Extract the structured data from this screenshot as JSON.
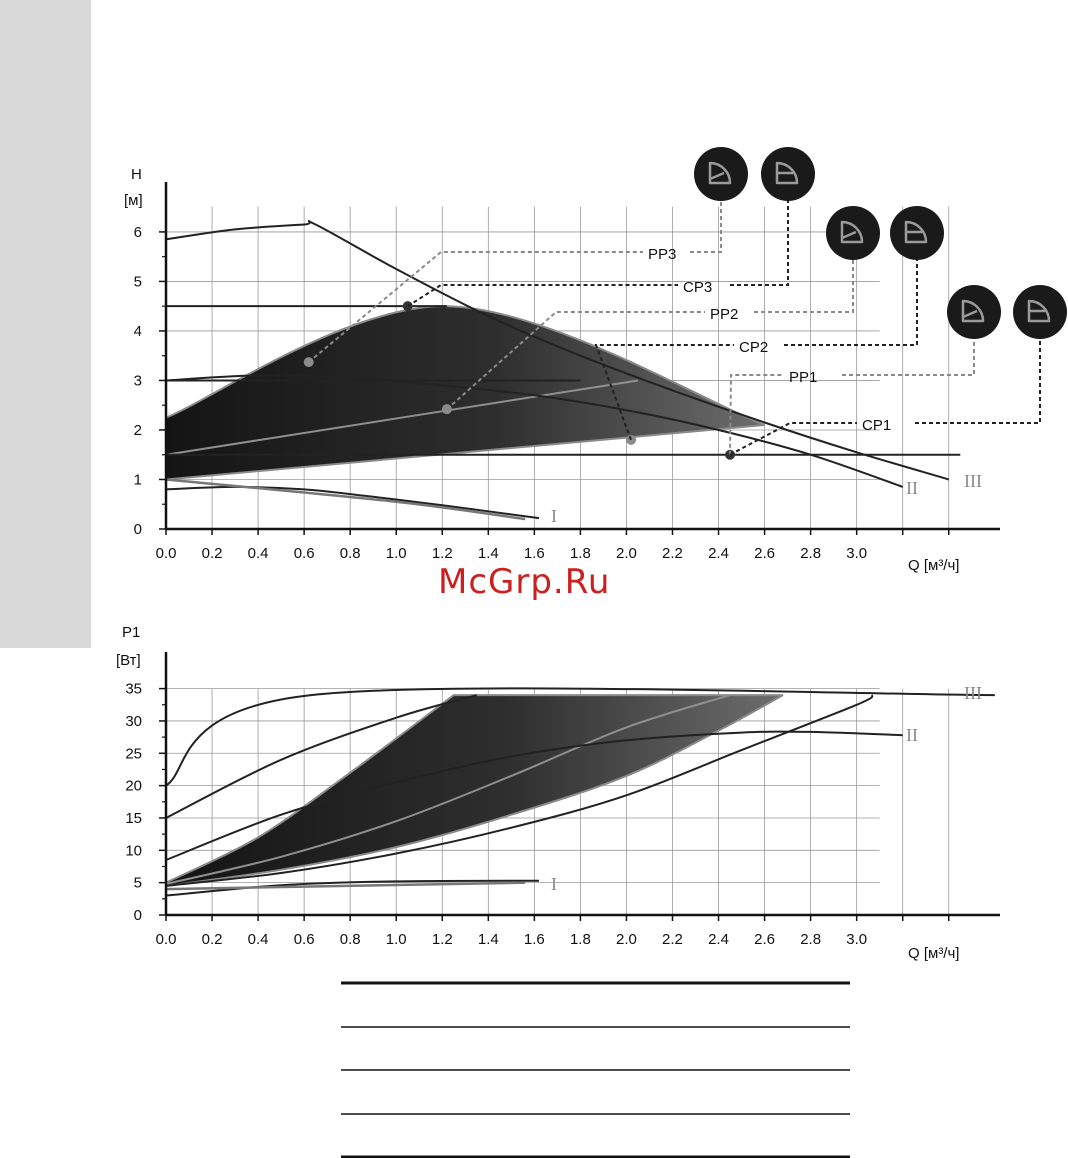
{
  "watermark": "McGrp.Ru",
  "chart_data": [
    {
      "type": "line",
      "ylabel": "H",
      "yunit": "[м]",
      "xlabel": "Q [м³/ч]",
      "xticks": [
        "0.0",
        "0.2",
        "0.4",
        "0.6",
        "0.8",
        "1.0",
        "1.2",
        "1.4",
        "1.6",
        "1.8",
        "2.0",
        "2.2",
        "2.4",
        "2.6",
        "2.8",
        "3.0"
      ],
      "yticks": [
        "0",
        "1",
        "2",
        "3",
        "4",
        "5",
        "6"
      ],
      "xlim": [
        0,
        3.6
      ],
      "ylim": [
        0,
        7
      ],
      "grid": true,
      "series": [
        {
          "name": "III",
          "color": "#222222",
          "x": [
            0,
            0.3,
            0.6,
            0.65,
            1.0,
            1.4,
            1.8,
            2.2,
            2.6,
            3.0,
            3.4
          ],
          "y": [
            5.85,
            6.05,
            6.15,
            6.15,
            5.25,
            4.3,
            3.5,
            2.8,
            2.15,
            1.55,
            1.0
          ]
        },
        {
          "name": "II",
          "color": "#222222",
          "x": [
            0,
            0.4,
            0.8,
            1.2,
            1.6,
            2.0,
            2.4,
            2.8,
            3.2
          ],
          "y": [
            3.0,
            3.1,
            3.05,
            2.9,
            2.7,
            2.4,
            2.0,
            1.5,
            0.85
          ]
        },
        {
          "name": "I",
          "color": "#222222",
          "x": [
            0,
            0.3,
            0.6,
            0.9,
            1.2,
            1.62
          ],
          "y": [
            0.8,
            0.85,
            0.8,
            0.65,
            0.48,
            0.22
          ]
        },
        {
          "name": "",
          "color": "#777777",
          "x": [
            0,
            1.0,
            1.56
          ],
          "y": [
            1.0,
            0.55,
            0.2
          ]
        },
        {
          "name": "",
          "color": "#222222",
          "x": [
            0,
            3.45
          ],
          "y": [
            1.5,
            1.5
          ]
        },
        {
          "name": "",
          "color": "#222222",
          "x": [
            0,
            1.22
          ],
          "y": [
            4.5,
            4.5
          ]
        },
        {
          "name": "",
          "color": "#222222",
          "x": [
            0,
            1.8
          ],
          "y": [
            3.0,
            3.0
          ]
        }
      ],
      "band": {
        "upper": {
          "x": [
            0,
            1.22,
            2.6
          ],
          "y": [
            2.25,
            4.5,
            2.1
          ]
        },
        "lower": {
          "x": [
            0,
            2.6
          ],
          "y": [
            1.0,
            2.1
          ]
        }
      },
      "mid_line": {
        "x": [
          0,
          2.05
        ],
        "y": [
          1.5,
          3.0
        ]
      },
      "points": [
        {
          "x": 0.62,
          "y": 3.37,
          "color": "#8a8a8a"
        },
        {
          "x": 1.05,
          "y": 4.5,
          "color": "#333333"
        },
        {
          "x": 1.22,
          "y": 2.42,
          "color": "#8a8a8a"
        },
        {
          "x": 2.02,
          "y": 1.8,
          "color": "#8a8a8a"
        },
        {
          "x": 2.45,
          "y": 1.5,
          "color": "#333333"
        }
      ],
      "curve_labels": [
        "III",
        "II",
        "I"
      ],
      "modes": [
        {
          "label": "PP3",
          "style": "dashed-gray"
        },
        {
          "label": "CP3",
          "style": "dashed-black"
        },
        {
          "label": "PP2",
          "style": "dashed-gray"
        },
        {
          "label": "CP2",
          "style": "dashed-black"
        },
        {
          "label": "PP1",
          "style": "dashed-gray"
        },
        {
          "label": "CP1",
          "style": "dashed-black"
        }
      ],
      "mode_icons": [
        "proportional-pressure-icon",
        "constant-pressure-icon",
        "proportional-pressure-icon",
        "constant-pressure-icon",
        "proportional-pressure-icon",
        "constant-pressure-icon"
      ]
    },
    {
      "type": "line",
      "ylabel": "P1",
      "yunit": "[Вт]",
      "xlabel": "Q [м³/ч]",
      "xticks": [
        "0.0",
        "0.2",
        "0.4",
        "0.6",
        "0.8",
        "1.0",
        "1.2",
        "1.4",
        "1.6",
        "1.8",
        "2.0",
        "2.2",
        "2.4",
        "2.6",
        "2.8",
        "3.0"
      ],
      "yticks": [
        "0",
        "5",
        "10",
        "15",
        "20",
        "25",
        "30",
        "35"
      ],
      "xlim": [
        0,
        3.6
      ],
      "ylim": [
        0,
        35
      ],
      "grid": true,
      "series": [
        {
          "name": "III",
          "color": "#222222",
          "x": [
            0,
            0.63,
            3.6
          ],
          "y": [
            20,
            34,
            34
          ]
        },
        {
          "name": "II",
          "color": "#222222",
          "x": [
            0,
            0.5,
            1.0,
            1.5,
            2.0,
            2.5,
            2.8,
            3.2
          ],
          "y": [
            8.5,
            15.5,
            20.5,
            24.5,
            27,
            28.2,
            28.3,
            27.8
          ]
        },
        {
          "name": "I",
          "color": "#222222",
          "x": [
            0,
            0.5,
            1.0,
            1.62
          ],
          "y": [
            3.0,
            4.6,
            5.2,
            5.3
          ]
        },
        {
          "name": "",
          "color": "#777777",
          "x": [
            0,
            1.56
          ],
          "y": [
            4.0,
            5.0
          ]
        },
        {
          "name": "",
          "color": "#222222",
          "x": [
            0,
            0.5,
            1.0,
            1.35
          ],
          "y": [
            15,
            24,
            30.5,
            34
          ]
        },
        {
          "name": "",
          "color": "#222222",
          "x": [
            0,
            0.5,
            1.0,
            1.5,
            2.0,
            2.5,
            3.0,
            3.07
          ],
          "y": [
            4.5,
            6.5,
            9.5,
            13.5,
            18.5,
            25.5,
            32.5,
            34
          ]
        }
      ],
      "band": {
        "upper": {
          "x": [
            0,
            0.4,
            0.8,
            1.25
          ],
          "y": [
            5,
            12,
            22,
            34
          ]
        },
        "lower": {
          "x": [
            0,
            0.5,
            1.0,
            1.5,
            2.0,
            2.4,
            2.68
          ],
          "y": [
            4.5,
            7.0,
            10.5,
            15.5,
            21.5,
            28.5,
            34
          ]
        }
      },
      "mid_line": {
        "x": [
          0,
          0.5,
          1.0,
          1.5,
          2.0,
          2.45
        ],
        "y": [
          4.8,
          9.0,
          14.5,
          21.5,
          29,
          34
        ]
      },
      "curve_labels": [
        "III",
        "II",
        "I"
      ]
    }
  ],
  "footer_rules": [
    "rule-1",
    "rule-2",
    "rule-3",
    "rule-4",
    "rule-5"
  ]
}
